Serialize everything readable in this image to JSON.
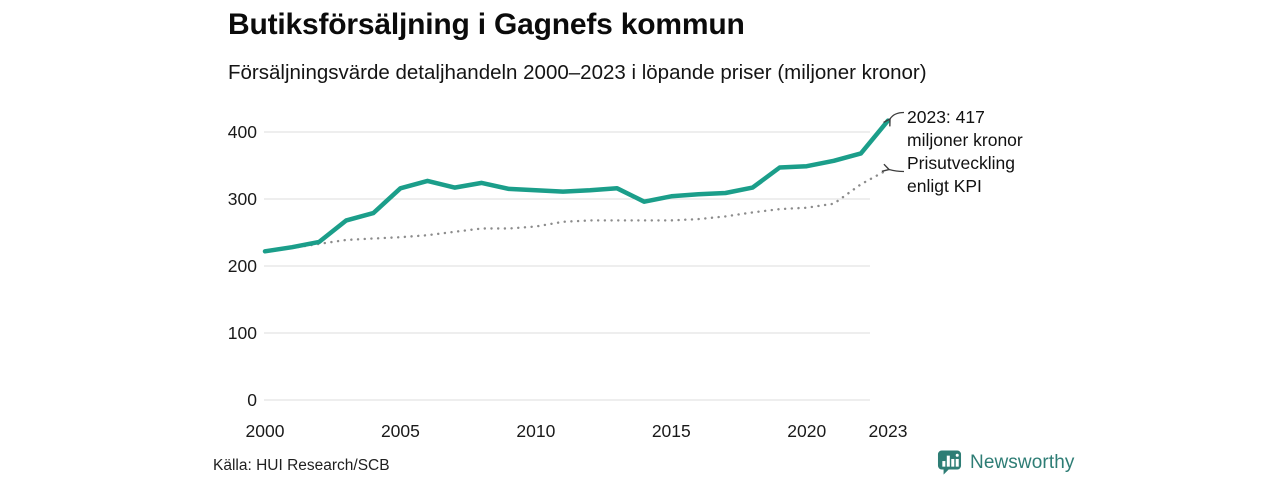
{
  "header": {
    "title": "Butiksförsäljning i Gagnefs kommun",
    "subtitle": "Försäljningsvärde detaljhandeln 2000–2023 i löpande priser (miljoner kronor)"
  },
  "chart_data": {
    "type": "line",
    "title": "Butiksförsäljning i Gagnefs kommun",
    "subtitle": "Försäljningsvärde detaljhandeln 2000–2023 i löpande priser (miljoner kronor)",
    "x": [
      2000,
      2001,
      2002,
      2003,
      2004,
      2005,
      2006,
      2007,
      2008,
      2009,
      2010,
      2011,
      2012,
      2013,
      2014,
      2015,
      2016,
      2017,
      2018,
      2019,
      2020,
      2021,
      2022,
      2023
    ],
    "series": [
      {
        "name": "Butiksförsäljning i löpande priser (miljoner kronor)",
        "style": "solid",
        "color": "#1b9e8a",
        "values": [
          222,
          228,
          236,
          268,
          279,
          316,
          327,
          317,
          324,
          315,
          313,
          311,
          313,
          316,
          296,
          304,
          307,
          309,
          317,
          347,
          349,
          357,
          368,
          417
        ]
      },
      {
        "name": "Prisutveckling enligt KPI",
        "style": "dotted",
        "color": "#8c8c8c",
        "values": [
          222,
          227,
          233,
          239,
          241,
          243,
          246,
          251,
          256,
          256,
          259,
          266,
          268,
          268,
          268,
          268,
          270,
          274,
          280,
          285,
          287,
          293,
          322,
          344
        ]
      }
    ],
    "ylim": [
      0,
      430
    ],
    "yticks": [
      400,
      300,
      200,
      100,
      0
    ],
    "xticks": [
      2000,
      2005,
      2010,
      2015,
      2020,
      2023
    ],
    "grid": "horizontal",
    "legend_position": "none",
    "annotations": [
      {
        "lines": [
          "2023: 417",
          "miljoner kronor"
        ]
      },
      {
        "lines": [
          "Prisutveckling",
          "enligt KPI"
        ]
      }
    ]
  },
  "footer": {
    "source": "Källa: HUI Research/SCB",
    "brand": "Newsworthy"
  },
  "colors": {
    "sales_line": "#1b9e8a",
    "kpi_dots": "#8c8c8c",
    "grid": "#dcdcdc",
    "brand_teal": "#2e7d75",
    "text": "#111111"
  }
}
